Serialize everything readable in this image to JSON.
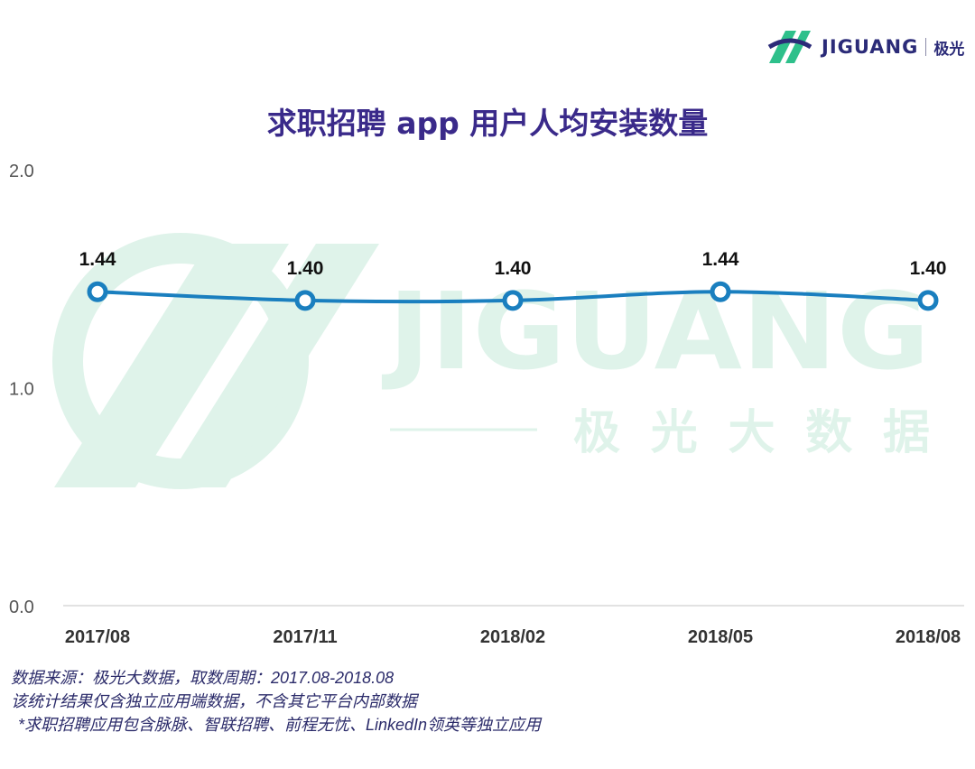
{
  "brand": {
    "logo_text": "JIGUANG",
    "logo_cn": "极光",
    "watermark_text": "JIGUANG",
    "watermark_sub": "极光大数据",
    "accent": "#1a7fbf",
    "watermark_color": "#dff3ea"
  },
  "chart_data": {
    "type": "line",
    "title": "求职招聘 app 用户人均安装数量",
    "categories": [
      "2017/08",
      "2017/11",
      "2018/02",
      "2018/05",
      "2018/08"
    ],
    "values": [
      1.44,
      1.4,
      1.4,
      1.44,
      1.4
    ],
    "value_labels": [
      "1.44",
      "1.40",
      "1.40",
      "1.44",
      "1.40"
    ],
    "ylim": [
      0,
      2.0
    ],
    "yticks": [
      "0.0",
      "1.0",
      "2.0"
    ],
    "smooth": true,
    "grid": false,
    "legend": "none"
  },
  "notes": [
    "数据来源：极光大数据，取数周期：2017.08-2018.08",
    "该统计结果仅含独立应用端数据，不含其它平台内部数据",
    "*求职招聘应用包含脉脉、智联招聘、前程无忧、LinkedIn领英等独立应用"
  ]
}
